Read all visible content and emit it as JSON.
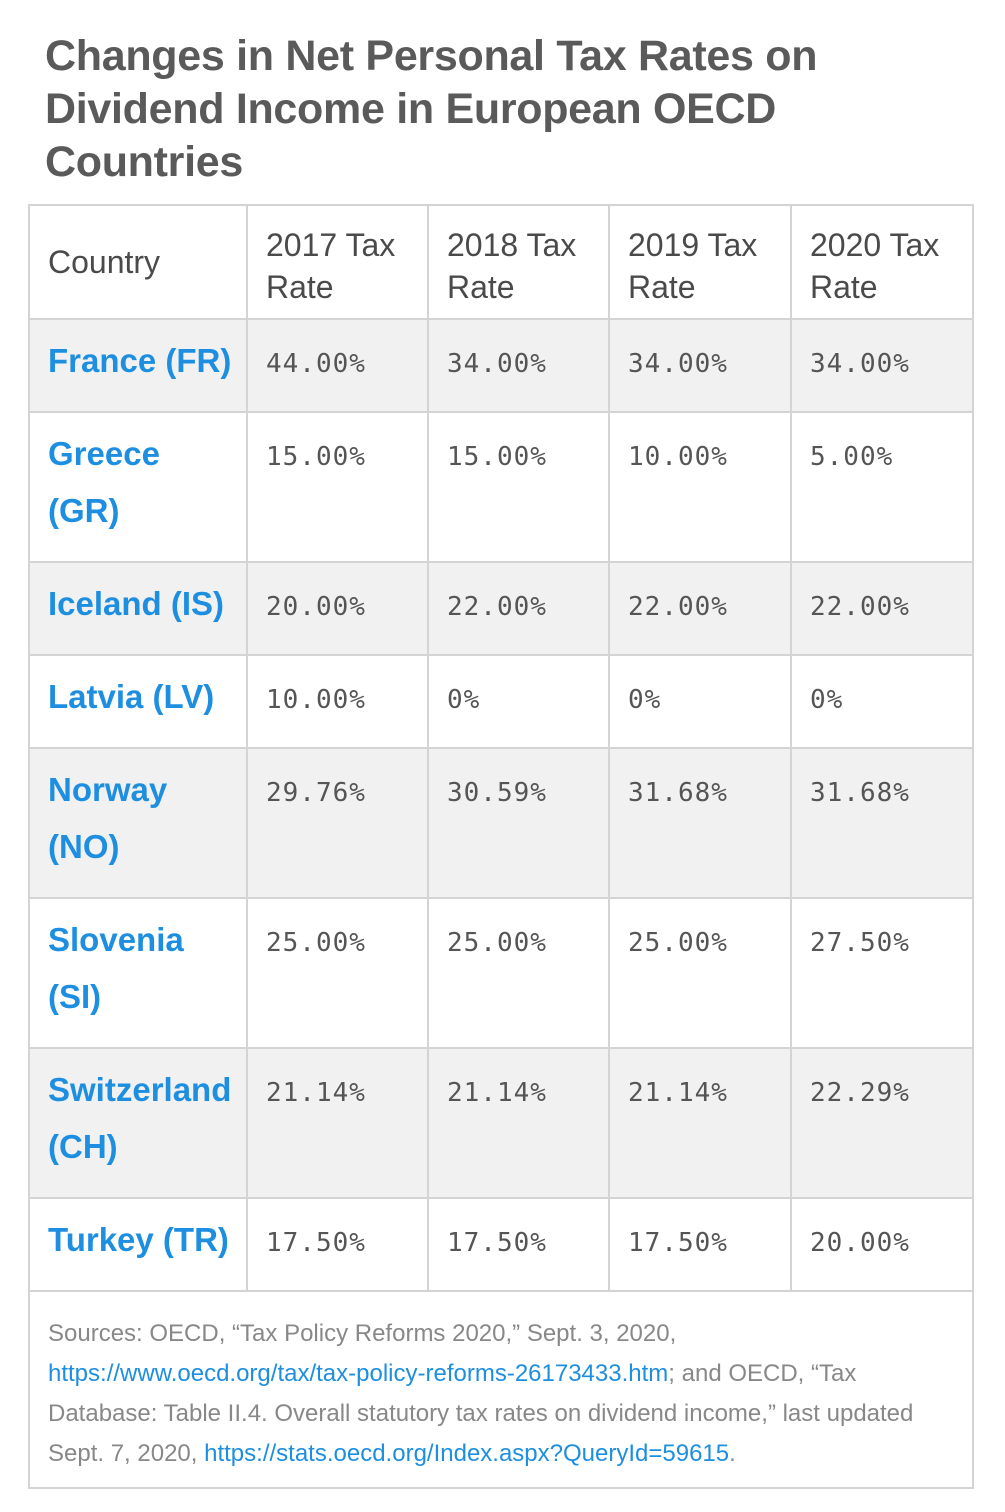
{
  "title": "Changes in Net Personal Tax Rates on Dividend Income in European OECD Countries",
  "table": {
    "headers": [
      "Country",
      "2017 Tax Rate",
      "2018 Tax Rate",
      "2019 Tax Rate",
      "2020 Tax Rate"
    ],
    "rows": [
      {
        "country": "France (FR)",
        "r2017": "44.00%",
        "r2018": "34.00%",
        "r2019": "34.00%",
        "r2020": "34.00%"
      },
      {
        "country": "Greece (GR)",
        "r2017": "15.00%",
        "r2018": "15.00%",
        "r2019": "10.00%",
        "r2020": "5.00%"
      },
      {
        "country": "Iceland (IS)",
        "r2017": "20.00%",
        "r2018": "22.00%",
        "r2019": "22.00%",
        "r2020": "22.00%"
      },
      {
        "country": "Latvia (LV)",
        "r2017": "10.00%",
        "r2018": "0%",
        "r2019": "0%",
        "r2020": "0%"
      },
      {
        "country": "Norway (NO)",
        "r2017": "29.76%",
        "r2018": "30.59%",
        "r2019": "31.68%",
        "r2020": "31.68%"
      },
      {
        "country": "Slovenia (SI)",
        "r2017": "25.00%",
        "r2018": "25.00%",
        "r2019": "25.00%",
        "r2020": "27.50%"
      },
      {
        "country": "Switzerland (CH)",
        "r2017": "21.14%",
        "r2018": "21.14%",
        "r2019": "21.14%",
        "r2020": "22.29%"
      },
      {
        "country": "Turkey (TR)",
        "r2017": "17.50%",
        "r2018": "17.50%",
        "r2019": "17.50%",
        "r2020": "20.00%"
      }
    ]
  },
  "sources": {
    "prefix": "Sources: OECD, “Tax Policy Reforms 2020,” Sept. 3, 2020, ",
    "link1": "https://www.oecd.org/tax/tax-policy-reforms-26173433.htm",
    "middle": "; and OECD, “Tax Database: Table II.4. Overall statutory tax rates on dividend income,” last updated Sept. 7, 2020, ",
    "link2": "https://stats.oecd.org/Index.aspx?QueryId=59615",
    "suffix": "."
  },
  "colors": {
    "link": "#1e8fe0",
    "row_shade": "#f1f1f1",
    "border": "#d4d4d4"
  }
}
